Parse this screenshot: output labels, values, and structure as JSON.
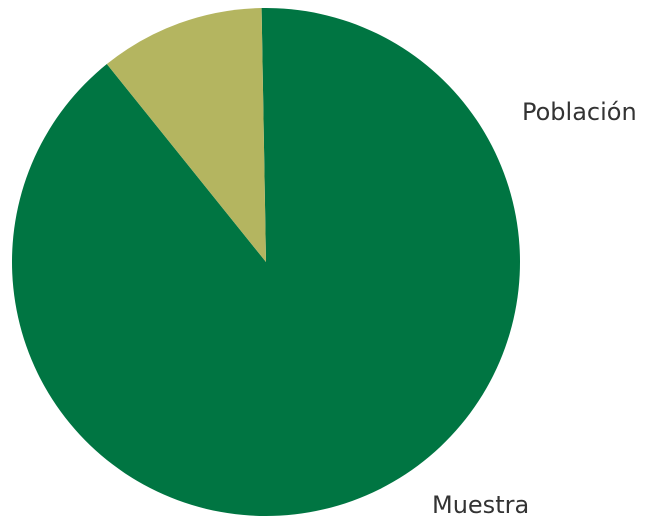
{
  "chart_data": {
    "type": "pie",
    "title": "",
    "slices": [
      {
        "label": "Población",
        "value": 89.5,
        "color": "#007542"
      },
      {
        "label": "Muestra",
        "value": 10.5,
        "color": "#B4B560"
      }
    ],
    "start_angle_deg": 91,
    "direction": "counterclockwise",
    "legend": "none"
  }
}
